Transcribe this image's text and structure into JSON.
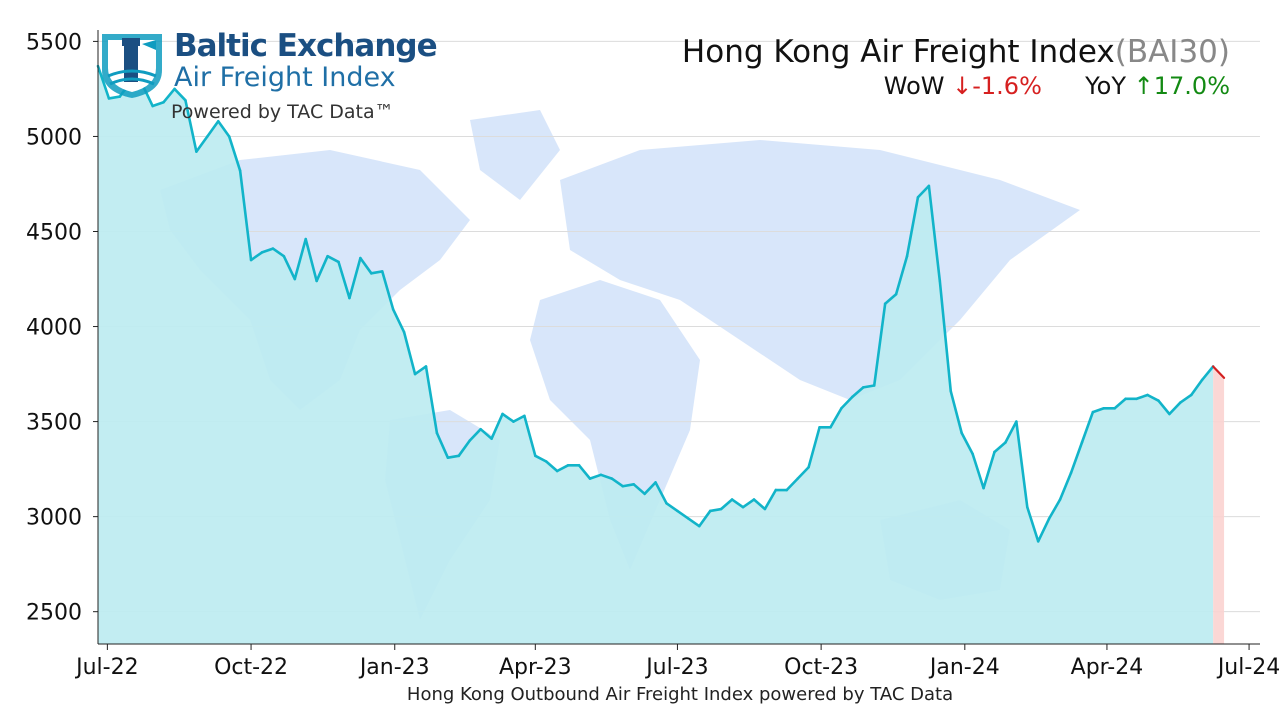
{
  "logo": {
    "line1": "Baltic Exchange",
    "line2": "Air Freight Index",
    "line3": "Powered by TAC Data™"
  },
  "header": {
    "title": "Hong Kong Air Freight Index",
    "code": "(BAI30)",
    "wow_label": "WoW",
    "wow_arrow": "↓",
    "wow_value": "-1.6%",
    "yoy_label": "YoY",
    "yoy_arrow": "↑",
    "yoy_value": "17.0%"
  },
  "colors": {
    "line": "#12b4c9",
    "fill": "#bdebf1",
    "last_segment": "#d32020",
    "last_fill": "#fbd3d0",
    "map": "#a8c8f4",
    "grid": "#dcdcdc"
  },
  "chart_data": {
    "type": "area",
    "xlabel": "Hong Kong Outbound Air Freight Index powered by TAC Data",
    "ylabel": "",
    "ylim": [
      2330,
      5560
    ],
    "xlim": [
      "2022-06-25",
      "2024-07-08"
    ],
    "y_ticks": [
      2500,
      3000,
      3500,
      4000,
      4500,
      5000,
      5500
    ],
    "x_ticks": [
      {
        "date": "2022-07-01",
        "label": "Jul-22"
      },
      {
        "date": "2022-10-01",
        "label": "Oct-22"
      },
      {
        "date": "2023-01-01",
        "label": "Jan-23"
      },
      {
        "date": "2023-04-01",
        "label": "Apr-23"
      },
      {
        "date": "2023-07-01",
        "label": "Jul-23"
      },
      {
        "date": "2023-10-01",
        "label": "Oct-23"
      },
      {
        "date": "2024-01-01",
        "label": "Jan-24"
      },
      {
        "date": "2024-04-01",
        "label": "Apr-24"
      },
      {
        "date": "2024-07-01",
        "label": "Jul-24"
      }
    ],
    "grid": true,
    "series": [
      {
        "points": [
          [
            "2022-06-25",
            5370
          ],
          [
            "2022-07-02",
            5200
          ],
          [
            "2022-07-09",
            5210
          ],
          [
            "2022-07-16",
            5290
          ],
          [
            "2022-07-23",
            5280
          ],
          [
            "2022-07-30",
            5160
          ],
          [
            "2022-08-06",
            5180
          ],
          [
            "2022-08-13",
            5250
          ],
          [
            "2022-08-20",
            5190
          ],
          [
            "2022-08-27",
            4920
          ],
          [
            "2022-09-03",
            5000
          ],
          [
            "2022-09-10",
            5080
          ],
          [
            "2022-09-17",
            5000
          ],
          [
            "2022-09-24",
            4820
          ],
          [
            "2022-10-01",
            4350
          ],
          [
            "2022-10-08",
            4390
          ],
          [
            "2022-10-15",
            4410
          ],
          [
            "2022-10-22",
            4370
          ],
          [
            "2022-10-29",
            4250
          ],
          [
            "2022-11-05",
            4460
          ],
          [
            "2022-11-12",
            4240
          ],
          [
            "2022-11-19",
            4370
          ],
          [
            "2022-11-26",
            4340
          ],
          [
            "2022-12-03",
            4150
          ],
          [
            "2022-12-10",
            4360
          ],
          [
            "2022-12-17",
            4280
          ],
          [
            "2022-12-24",
            4290
          ],
          [
            "2022-12-31",
            4090
          ],
          [
            "2023-01-07",
            3970
          ],
          [
            "2023-01-14",
            3750
          ],
          [
            "2023-01-21",
            3790
          ],
          [
            "2023-01-28",
            3440
          ],
          [
            "2023-02-04",
            3310
          ],
          [
            "2023-02-11",
            3320
          ],
          [
            "2023-02-18",
            3400
          ],
          [
            "2023-02-25",
            3460
          ],
          [
            "2023-03-04",
            3410
          ],
          [
            "2023-03-11",
            3540
          ],
          [
            "2023-03-18",
            3500
          ],
          [
            "2023-03-25",
            3530
          ],
          [
            "2023-04-01",
            3320
          ],
          [
            "2023-04-08",
            3290
          ],
          [
            "2023-04-15",
            3240
          ],
          [
            "2023-04-22",
            3270
          ],
          [
            "2023-04-29",
            3270
          ],
          [
            "2023-05-06",
            3200
          ],
          [
            "2023-05-13",
            3220
          ],
          [
            "2023-05-20",
            3200
          ],
          [
            "2023-05-27",
            3160
          ],
          [
            "2023-06-03",
            3170
          ],
          [
            "2023-06-10",
            3120
          ],
          [
            "2023-06-17",
            3180
          ],
          [
            "2023-06-24",
            3070
          ],
          [
            "2023-07-01",
            3030
          ],
          [
            "2023-07-08",
            2990
          ],
          [
            "2023-07-15",
            2950
          ],
          [
            "2023-07-22",
            3030
          ],
          [
            "2023-07-29",
            3040
          ],
          [
            "2023-08-05",
            3090
          ],
          [
            "2023-08-12",
            3050
          ],
          [
            "2023-08-19",
            3090
          ],
          [
            "2023-08-26",
            3040
          ],
          [
            "2023-09-02",
            3140
          ],
          [
            "2023-09-09",
            3140
          ],
          [
            "2023-09-16",
            3200
          ],
          [
            "2023-09-23",
            3260
          ],
          [
            "2023-09-30",
            3470
          ],
          [
            "2023-10-07",
            3470
          ],
          [
            "2023-10-14",
            3570
          ],
          [
            "2023-10-21",
            3630
          ],
          [
            "2023-10-28",
            3680
          ],
          [
            "2023-11-04",
            3690
          ],
          [
            "2023-11-11",
            4120
          ],
          [
            "2023-11-18",
            4170
          ],
          [
            "2023-11-25",
            4370
          ],
          [
            "2023-12-02",
            4680
          ],
          [
            "2023-12-09",
            4740
          ],
          [
            "2023-12-16",
            4240
          ],
          [
            "2023-12-23",
            3660
          ],
          [
            "2023-12-30",
            3440
          ],
          [
            "2024-01-06",
            3330
          ],
          [
            "2024-01-13",
            3150
          ],
          [
            "2024-01-20",
            3340
          ],
          [
            "2024-01-27",
            3390
          ],
          [
            "2024-02-03",
            3500
          ],
          [
            "2024-02-10",
            3050
          ],
          [
            "2024-02-17",
            2870
          ],
          [
            "2024-02-24",
            2990
          ],
          [
            "2024-03-02",
            3090
          ],
          [
            "2024-03-09",
            3230
          ],
          [
            "2024-03-16",
            3390
          ],
          [
            "2024-03-23",
            3550
          ],
          [
            "2024-03-30",
            3570
          ],
          [
            "2024-04-06",
            3570
          ],
          [
            "2024-04-13",
            3620
          ],
          [
            "2024-04-20",
            3620
          ],
          [
            "2024-04-27",
            3640
          ],
          [
            "2024-05-04",
            3610
          ],
          [
            "2024-05-11",
            3540
          ],
          [
            "2024-05-18",
            3600
          ],
          [
            "2024-05-25",
            3640
          ],
          [
            "2024-06-01",
            3720
          ],
          [
            "2024-06-08",
            3790
          ],
          [
            "2024-06-15",
            3730
          ]
        ]
      }
    ]
  }
}
